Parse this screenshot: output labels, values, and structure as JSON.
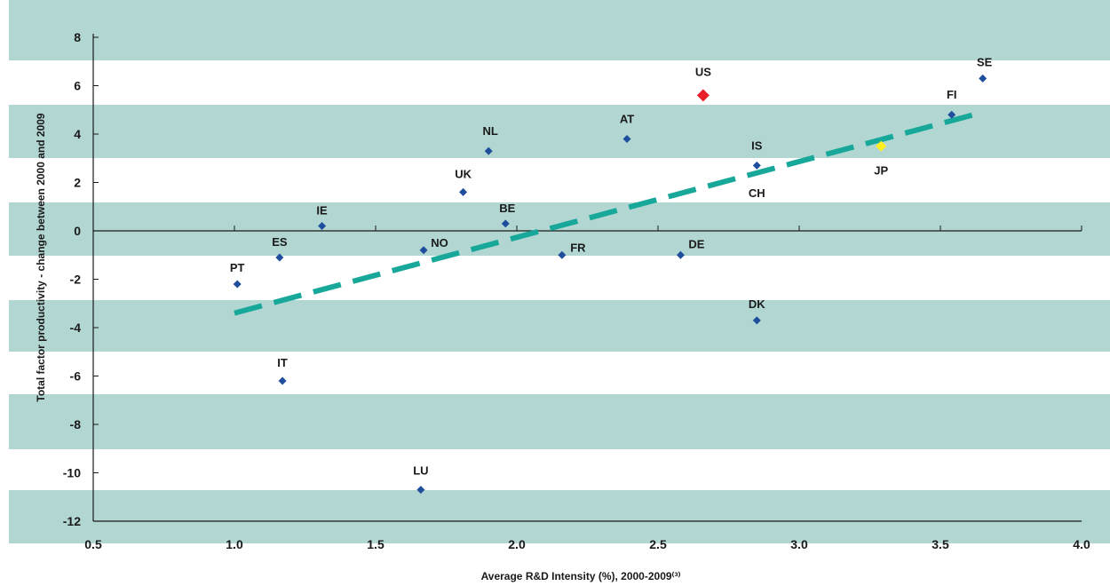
{
  "chart_data": {
    "type": "scatter",
    "title": "",
    "xlabel": "Average R&D Intensity (%), 2000-2009⁽³⁾",
    "ylabel": "Total factor productivity - change between 2000 and 2009",
    "xlim": [
      0.5,
      4.0
    ],
    "ylim": [
      -12,
      8
    ],
    "xticks": [
      "0.5",
      "1.0",
      "1.5",
      "2.0",
      "2.5",
      "3.0",
      "3.5",
      "4.0"
    ],
    "yticks": [
      "8",
      "6",
      "4",
      "2",
      "0",
      "-2",
      "-4",
      "-6",
      "-8",
      "-10",
      "-12"
    ],
    "points": [
      {
        "label": "PT",
        "x": 1.01,
        "y": -2.2
      },
      {
        "label": "ES",
        "x": 1.16,
        "y": -1.1
      },
      {
        "label": "IT",
        "x": 1.17,
        "y": -6.2
      },
      {
        "label": "IE",
        "x": 1.31,
        "y": 0.2
      },
      {
        "label": "LU",
        "x": 1.66,
        "y": -10.7
      },
      {
        "label": "NO",
        "x": 1.67,
        "y": -0.8
      },
      {
        "label": "UK",
        "x": 1.81,
        "y": 1.6
      },
      {
        "label": "NL",
        "x": 1.9,
        "y": 3.3
      },
      {
        "label": "BE",
        "x": 1.96,
        "y": 0.3
      },
      {
        "label": "FR",
        "x": 2.16,
        "y": -1.0
      },
      {
        "label": "AT",
        "x": 2.39,
        "y": 3.8
      },
      {
        "label": "DE",
        "x": 2.58,
        "y": -1.0
      },
      {
        "label": "US",
        "x": 2.66,
        "y": 5.6
      },
      {
        "label": "IS",
        "x": 2.85,
        "y": 2.7
      },
      {
        "label": "CH",
        "x": 2.85,
        "y": 2.6
      },
      {
        "label": "DK",
        "x": 2.85,
        "y": -3.7
      },
      {
        "label": "JP",
        "x": 3.29,
        "y": 3.5
      },
      {
        "label": "FI",
        "x": 3.54,
        "y": 4.8
      },
      {
        "label": "SE",
        "x": 3.65,
        "y": 6.3
      }
    ],
    "trendline": {
      "x": [
        1.0,
        3.65
      ],
      "y": [
        -3.4,
        4.9
      ]
    },
    "colors": {
      "point": "#1f4e9c",
      "us": "#e8202a",
      "jp": "#ffee1f",
      "trend": "#17a89a",
      "band": "#b2d6d2",
      "axis": "#1a1a1a"
    },
    "grid": false,
    "background": "alternating horizontal bands"
  }
}
